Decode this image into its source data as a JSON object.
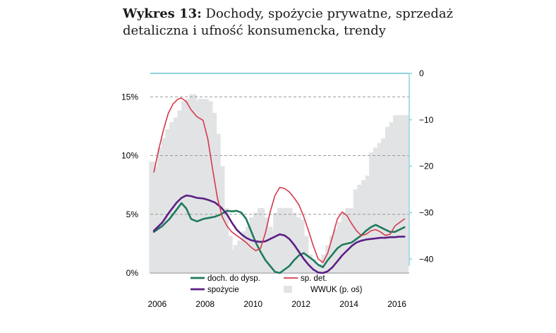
{
  "title": {
    "bold": "Wykres 13:",
    "rest": "Dochody, spożycie prywatne, sprzedaż detaliczna i ufność konsumencka, trendy"
  },
  "chart_data": {
    "type": "line",
    "title": "Wykres 13: Dochody, spożycie prywatne, sprzedaż detaliczna i ufność konsumencka, trendy",
    "x_ticks": [
      "2006",
      "2008",
      "2010",
      "2012",
      "2014",
      "2016"
    ],
    "xlim": [
      2005.8,
      2016.6
    ],
    "y_left": {
      "ticks": [
        "0%",
        "5%",
        "10%",
        "15%"
      ],
      "tick_values": [
        0,
        5,
        10,
        15
      ],
      "ylim": [
        0,
        17
      ]
    },
    "y_right": {
      "ticks": [
        "0",
        "-10",
        "-20",
        "-30",
        "-40"
      ],
      "tick_values": [
        0,
        -10,
        -20,
        -30,
        -40
      ],
      "ylim": [
        -43,
        0
      ]
    },
    "grid": "dashed horizontal at 5% steps",
    "legend": "bottom-center",
    "series": [
      {
        "name": "doch. do dysp.",
        "color": "#1e7a5e",
        "axis": "left",
        "x": [
          2005.95,
          2006.3,
          2006.6,
          2006.9,
          2007.1,
          2007.3,
          2007.5,
          2007.75,
          2008.0,
          2008.25,
          2008.5,
          2008.75,
          2009.0,
          2009.2,
          2009.4,
          2009.6,
          2009.8,
          2010.0,
          2010.2,
          2010.4,
          2010.6,
          2010.8,
          2011.0,
          2011.2,
          2011.4,
          2011.6,
          2011.8,
          2012.0,
          2012.2,
          2012.4,
          2012.6,
          2012.8,
          2013.0,
          2013.2,
          2013.4,
          2013.6,
          2013.8,
          2014.0,
          2014.2,
          2014.4,
          2014.6,
          2014.8,
          2015.0,
          2015.2,
          2015.4,
          2015.6,
          2015.8,
          2016.0,
          2016.2,
          2016.4
        ],
        "values": [
          3.5,
          4.0,
          4.6,
          5.4,
          5.95,
          5.5,
          4.6,
          4.4,
          4.6,
          4.7,
          4.8,
          5.0,
          5.3,
          5.25,
          5.3,
          5.15,
          4.6,
          3.6,
          2.6,
          1.8,
          1.1,
          0.6,
          0.1,
          0.0,
          0.3,
          0.6,
          1.1,
          1.5,
          1.7,
          1.4,
          1.1,
          0.7,
          0.5,
          1.1,
          1.6,
          2.1,
          2.4,
          2.5,
          2.6,
          2.9,
          3.2,
          3.6,
          3.9,
          4.1,
          3.9,
          3.7,
          3.5,
          3.5,
          3.7,
          3.9
        ]
      },
      {
        "name": "spożycie",
        "color": "#5b1f86",
        "axis": "left",
        "x": [
          2005.95,
          2006.3,
          2006.6,
          2006.9,
          2007.1,
          2007.3,
          2007.5,
          2007.75,
          2008.0,
          2008.25,
          2008.5,
          2008.75,
          2009.0,
          2009.2,
          2009.4,
          2009.6,
          2009.8,
          2010.0,
          2010.2,
          2010.4,
          2010.6,
          2010.8,
          2011.0,
          2011.2,
          2011.4,
          2011.6,
          2011.8,
          2012.0,
          2012.2,
          2012.4,
          2012.6,
          2012.8,
          2013.0,
          2013.2,
          2013.4,
          2013.6,
          2013.8,
          2014.0,
          2014.2,
          2014.4,
          2014.6,
          2014.8,
          2015.0,
          2015.2,
          2015.4,
          2015.6,
          2015.8,
          2016.0,
          2016.2,
          2016.4
        ],
        "values": [
          3.6,
          4.3,
          5.2,
          6.0,
          6.4,
          6.6,
          6.55,
          6.4,
          6.35,
          6.2,
          6.0,
          5.6,
          5.0,
          4.3,
          3.7,
          3.3,
          3.0,
          2.8,
          2.7,
          2.65,
          2.7,
          2.9,
          3.1,
          3.3,
          3.2,
          2.9,
          2.4,
          1.8,
          1.2,
          0.7,
          0.3,
          0.05,
          0.0,
          0.15,
          0.5,
          1.0,
          1.5,
          1.9,
          2.3,
          2.6,
          2.75,
          2.85,
          2.9,
          2.95,
          3.0,
          3.0,
          3.05,
          3.05,
          3.1,
          3.1
        ]
      },
      {
        "name": "sp. det.",
        "color": "#d43a4b",
        "axis": "left",
        "x": [
          2005.95,
          2006.15,
          2006.35,
          2006.55,
          2006.75,
          2006.95,
          2007.1,
          2007.3,
          2007.5,
          2007.75,
          2008.0,
          2008.2,
          2008.4,
          2008.6,
          2008.8,
          2009.0,
          2009.2,
          2009.4,
          2009.6,
          2009.8,
          2010.0,
          2010.2,
          2010.4,
          2010.6,
          2010.8,
          2011.0,
          2011.2,
          2011.4,
          2011.6,
          2011.8,
          2012.0,
          2012.2,
          2012.4,
          2012.6,
          2012.8,
          2013.0,
          2013.2,
          2013.4,
          2013.6,
          2013.8,
          2014.0,
          2014.2,
          2014.4,
          2014.6,
          2014.8,
          2015.0,
          2015.2,
          2015.4,
          2015.6,
          2015.8,
          2016.0,
          2016.2,
          2016.4
        ],
        "values": [
          8.6,
          10.5,
          12.2,
          13.6,
          14.4,
          14.8,
          14.9,
          14.6,
          13.9,
          13.3,
          13.0,
          11.4,
          8.8,
          6.4,
          4.8,
          4.0,
          3.5,
          3.2,
          2.9,
          2.6,
          2.2,
          1.9,
          2.1,
          3.4,
          5.2,
          6.6,
          7.3,
          7.2,
          6.9,
          6.4,
          5.8,
          4.8,
          3.6,
          2.3,
          1.2,
          0.9,
          1.7,
          3.1,
          4.6,
          5.2,
          4.9,
          4.2,
          3.6,
          3.2,
          3.3,
          3.6,
          3.7,
          3.5,
          3.2,
          3.3,
          4.0,
          4.3,
          4.6
        ]
      },
      {
        "name": "WWUK (p. oś)",
        "color": "#e2e3e5",
        "axis": "right",
        "kind": "bar",
        "x": [
          2005.9,
          2006.08,
          2006.25,
          2006.42,
          2006.58,
          2006.75,
          2006.92,
          2007.08,
          2007.25,
          2007.42,
          2007.58,
          2007.75,
          2007.92,
          2008.08,
          2008.25,
          2008.42,
          2008.58,
          2008.75,
          2008.92,
          2009.08,
          2009.25,
          2009.42,
          2009.58,
          2009.75,
          2009.92,
          2010.08,
          2010.25,
          2010.42,
          2010.58,
          2010.75,
          2010.92,
          2011.08,
          2011.25,
          2011.42,
          2011.58,
          2011.75,
          2011.92,
          2012.08,
          2012.25,
          2012.42,
          2012.58,
          2012.75,
          2012.92,
          2013.08,
          2013.25,
          2013.42,
          2013.58,
          2013.75,
          2013.92,
          2014.08,
          2014.25,
          2014.42,
          2014.58,
          2014.75,
          2014.92,
          2015.08,
          2015.25,
          2015.42,
          2015.58,
          2015.75,
          2015.92,
          2016.08,
          2016.25,
          2016.42
        ],
        "values": [
          -19,
          -20,
          -16,
          -14,
          -12,
          -10.5,
          -9.5,
          -8,
          -6,
          -5.5,
          -4.5,
          -6,
          -5.5,
          -5.5,
          -6,
          -8.5,
          -13,
          -20,
          -29,
          -35,
          -38,
          -37,
          -36,
          -34,
          -33,
          -31,
          -30,
          -29,
          -31,
          -33,
          -34,
          -30,
          -29,
          -29,
          -29,
          -30,
          -31,
          -31.5,
          -35,
          -39,
          -40,
          -41.5,
          -41,
          -39,
          -37,
          -35,
          -33.5,
          -32,
          -30,
          -29,
          -29,
          -25,
          -24,
          -23,
          -22,
          -17,
          -16,
          -15,
          -14,
          -11.5,
          -10.5,
          -9,
          -9,
          -9
        ]
      }
    ]
  }
}
